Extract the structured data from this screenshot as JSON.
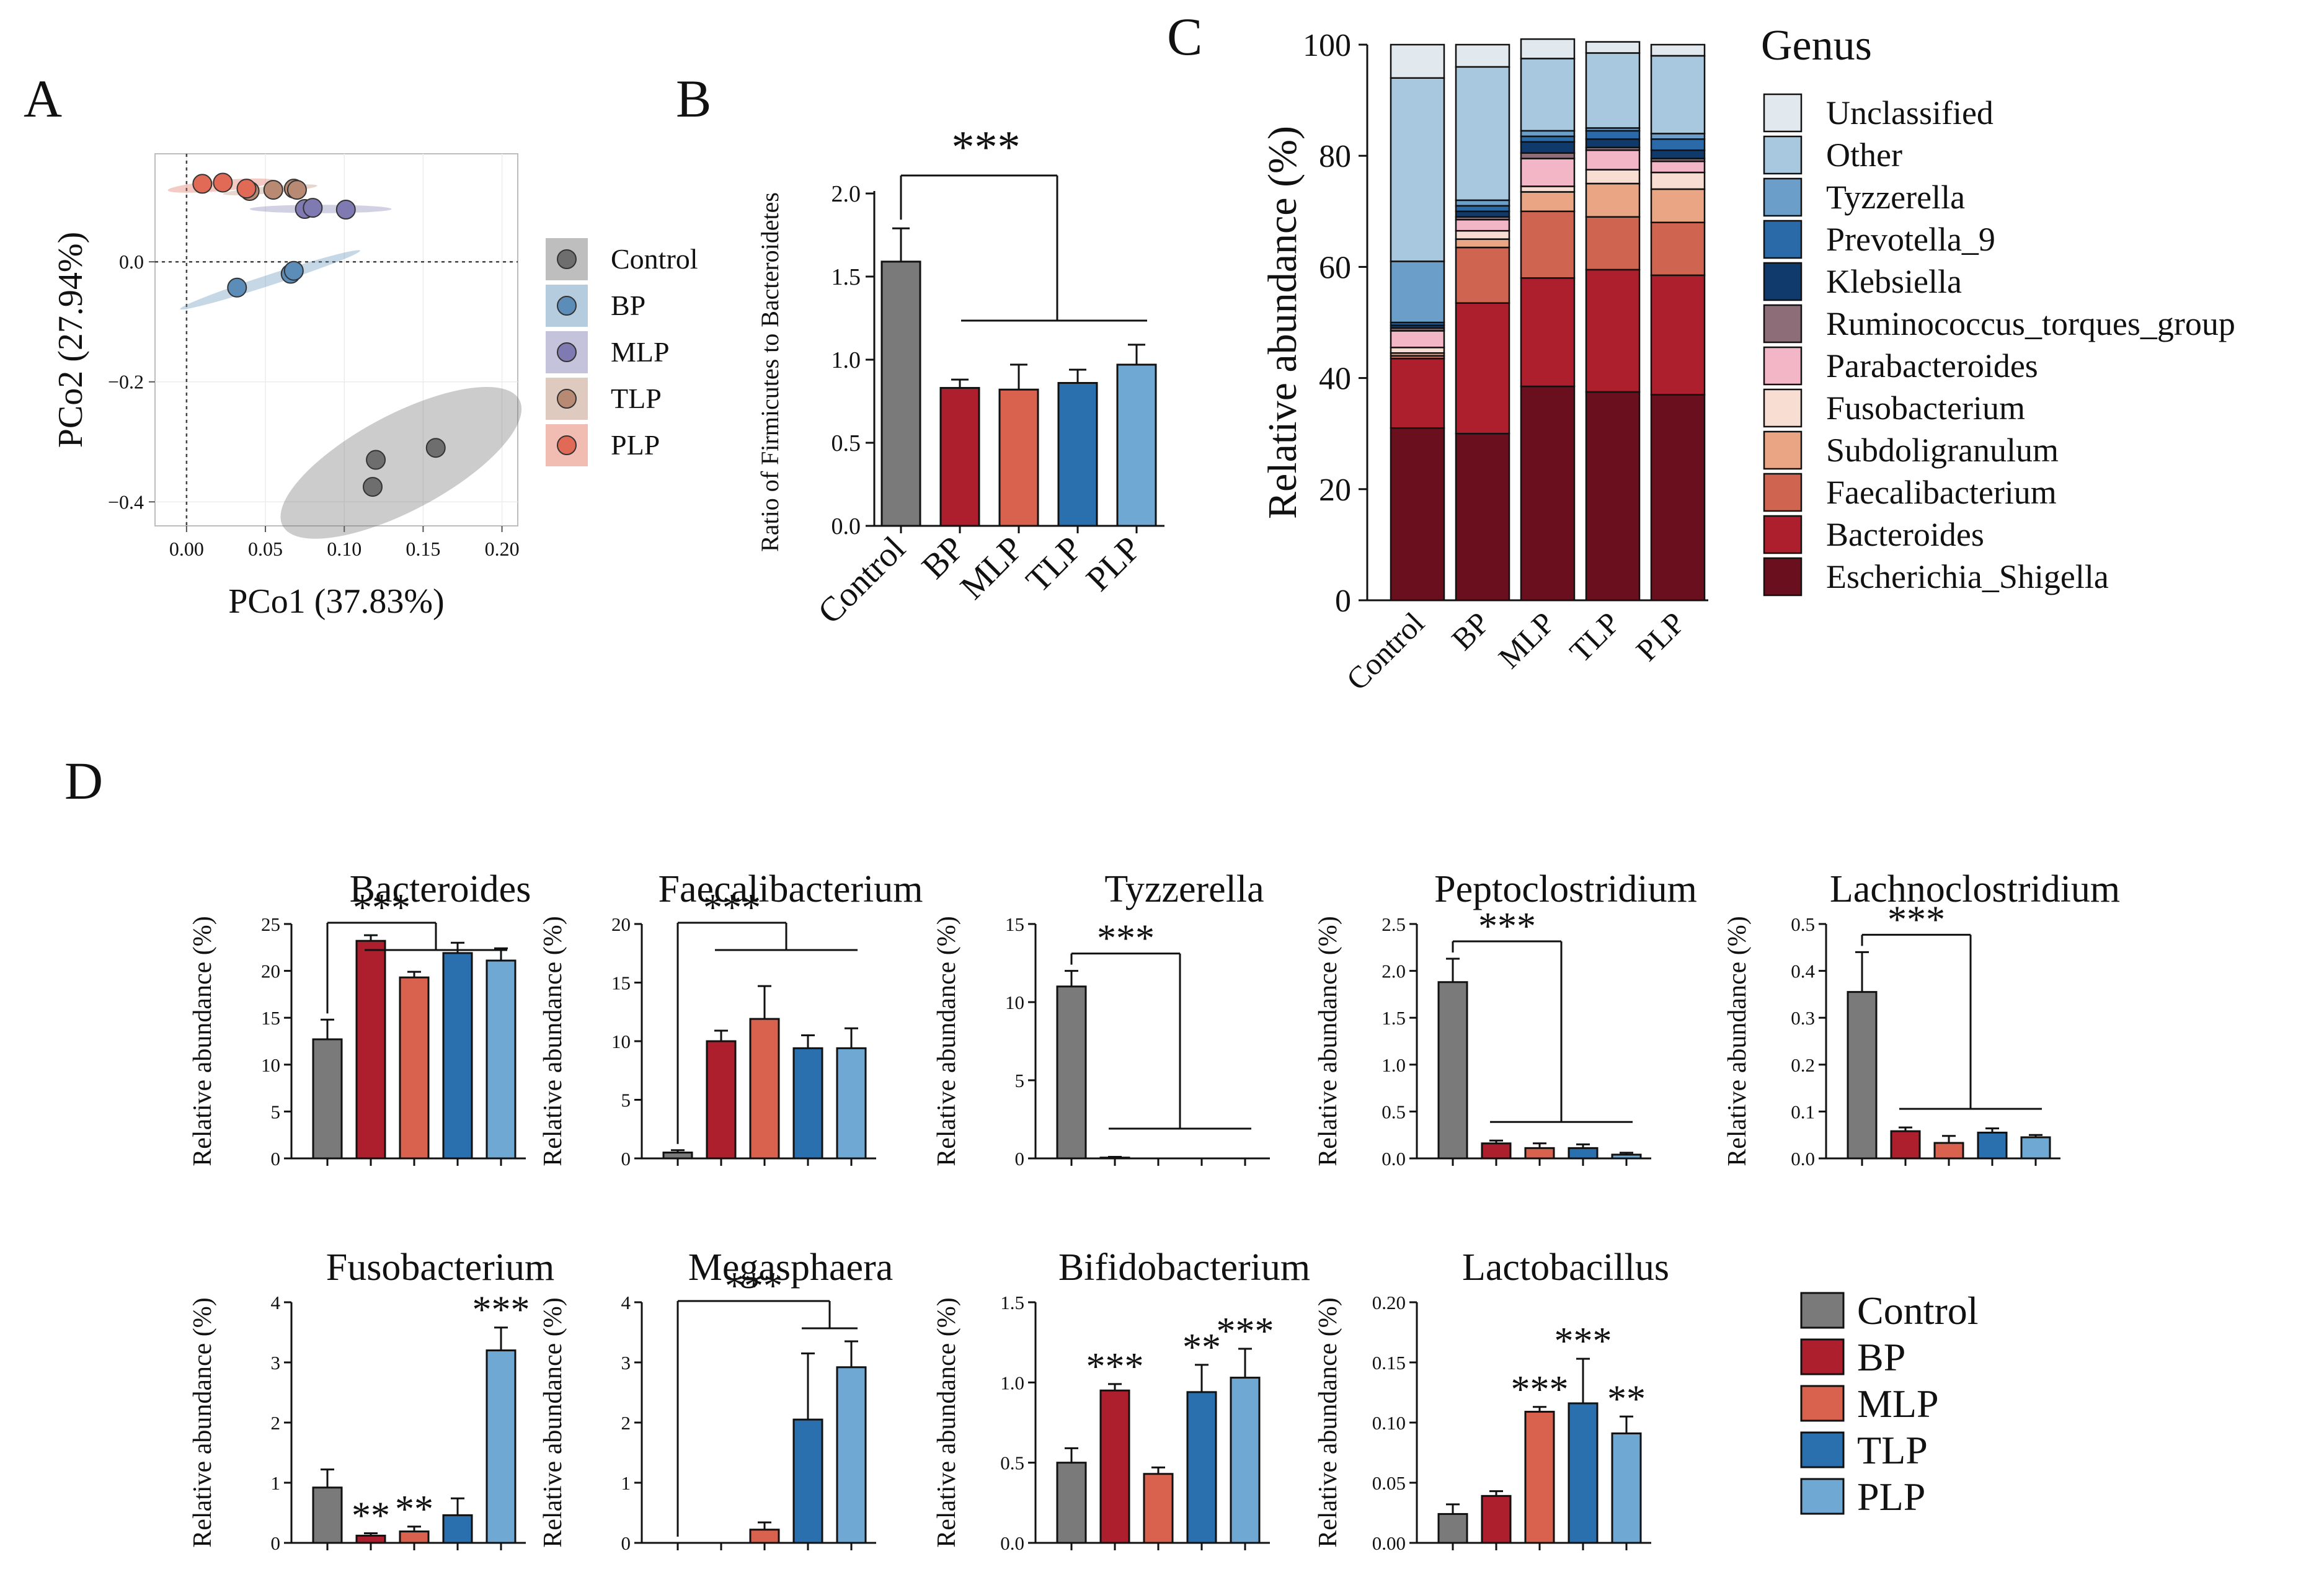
{
  "groups": [
    "Control",
    "BP",
    "MLP",
    "TLP",
    "PLP"
  ],
  "colors": {
    "Control": "#7a7a7a",
    "BP": "#ad1f2d",
    "MLP": "#d8624e",
    "TLP": "#2a70ae",
    "PLP": "#6ea8d3"
  },
  "pcoa_colors": {
    "Control": "#6e6e6e",
    "BP": "#5b8db8",
    "MLP": "#7f7bb2",
    "TLP": "#b88a74",
    "PLP": "#e06a55"
  },
  "genus_colors": {
    "Unclassified": "#e1e9ee",
    "Other": "#a8c8df",
    "Tyzzerella": "#6b9ec8",
    "Prevotella_9": "#2a6aa8",
    "Klebsiella": "#0f3a6b",
    "Ruminococcus_torques_group": "#8c6d78",
    "Parabacteroides": "#f3b6c6",
    "Fusobacterium": "#f8ded2",
    "Subdoligranulum": "#eaa585",
    "Faecalibacterium": "#cf6550",
    "Bacteroides": "#ad1f2d",
    "Escherichia_Shigella": "#6a0f1e"
  },
  "panel_letters": {
    "A": "A",
    "B": "B",
    "C": "C",
    "D": "D"
  },
  "chart_data": [
    {
      "id": "A",
      "type": "scatter",
      "title": "",
      "xlabel": "PCo1 (37.83%)",
      "ylabel": "PCo2 (27.94%)",
      "xlim": [
        -0.02,
        0.21
      ],
      "ylim": [
        -0.44,
        0.18
      ],
      "xticks": [
        0.0,
        0.05,
        0.1,
        0.15,
        0.2
      ],
      "xtick_labels": [
        "0.00",
        "0.05",
        "0.10",
        "0.15",
        "0.20"
      ],
      "yticks": [
        0.0,
        -0.2,
        -0.4
      ],
      "ytick_labels": [
        "0.0",
        "−0.2",
        "−0.4"
      ],
      "legend": [
        "Control",
        "BP",
        "MLP",
        "TLP",
        "PLP"
      ],
      "legend_position": "right",
      "series": [
        {
          "name": "Control",
          "points": [
            [
              0.12,
              -0.33
            ],
            [
              0.158,
              -0.31
            ],
            [
              0.118,
              -0.375
            ]
          ],
          "ellipse": {
            "cx": 0.136,
            "cy": -0.335,
            "rx": 0.085,
            "ry": 0.08,
            "angle": -28
          }
        },
        {
          "name": "BP",
          "points": [
            [
              0.032,
              -0.043
            ],
            [
              0.066,
              -0.02
            ],
            [
              0.068,
              -0.015
            ]
          ],
          "ellipse": {
            "cx": 0.053,
            "cy": -0.03,
            "rx": 0.06,
            "ry": 0.009,
            "angle": -18
          }
        },
        {
          "name": "MLP",
          "points": [
            [
              0.075,
              0.088
            ],
            [
              0.08,
              0.09
            ],
            [
              0.101,
              0.087
            ]
          ],
          "ellipse": {
            "cx": 0.085,
            "cy": 0.088,
            "rx": 0.045,
            "ry": 0.007,
            "angle": 0
          }
        },
        {
          "name": "TLP",
          "points": [
            [
              0.04,
              0.118
            ],
            [
              0.055,
              0.12
            ],
            [
              0.068,
              0.122
            ],
            [
              0.07,
              0.12
            ]
          ],
          "ellipse": {
            "cx": 0.053,
            "cy": 0.12,
            "rx": 0.03,
            "ry": 0.006,
            "angle": -5
          }
        },
        {
          "name": "PLP",
          "points": [
            [
              0.01,
              0.13
            ],
            [
              0.023,
              0.132
            ],
            [
              0.038,
              0.122
            ]
          ],
          "ellipse": {
            "cx": 0.022,
            "cy": 0.127,
            "rx": 0.034,
            "ry": 0.009,
            "angle": -5
          }
        }
      ]
    },
    {
      "id": "B",
      "type": "bar",
      "title": "",
      "xlabel": "",
      "ylabel": "Ratio of Firmicutes to Bacteroidetes",
      "categories": [
        "Control",
        "BP",
        "MLP",
        "TLP",
        "PLP"
      ],
      "values": [
        1.59,
        0.83,
        0.82,
        0.86,
        0.97
      ],
      "errors": [
        0.2,
        0.05,
        0.15,
        0.08,
        0.12
      ],
      "ylim": [
        0,
        2.0
      ],
      "yticks": [
        0.0,
        0.5,
        1.0,
        1.5,
        2.0
      ],
      "ytick_labels": [
        "0.0",
        "0.5",
        "1.0",
        "1.5",
        "2.0"
      ],
      "significance": [
        {
          "label": "***",
          "type": "group",
          "ref": 0,
          "targets": [
            1,
            4
          ]
        }
      ]
    },
    {
      "id": "C",
      "type": "stacked_bar",
      "title": "",
      "xlabel": "",
      "ylabel": "Relative abundance (%)",
      "categories": [
        "Control",
        "BP",
        "MLP",
        "TLP",
        "PLP"
      ],
      "ylim": [
        0,
        100
      ],
      "yticks": [
        0,
        20,
        40,
        60,
        80,
        100
      ],
      "legend_title": "Genus",
      "legend_position": "right",
      "series": [
        {
          "name": "Escherichia_Shigella",
          "values": [
            31,
            30,
            38.5,
            37.5,
            37
          ]
        },
        {
          "name": "Bacteroides",
          "values": [
            12.5,
            23.5,
            19.5,
            22,
            21.5
          ]
        },
        {
          "name": "Faecalibacterium",
          "values": [
            0.5,
            10,
            12,
            9.5,
            9.5
          ]
        },
        {
          "name": "Subdoligranulum",
          "values": [
            0.5,
            1.5,
            3.5,
            6,
            6
          ]
        },
        {
          "name": "Fusobacterium",
          "values": [
            1,
            1.5,
            1,
            2.5,
            3
          ]
        },
        {
          "name": "Parabacteroides",
          "values": [
            3,
            2,
            5,
            3.5,
            2
          ]
        },
        {
          "name": "Ruminococcus_torques_group",
          "values": [
            0.5,
            0.5,
            1,
            0.5,
            0.5
          ]
        },
        {
          "name": "Klebsiella",
          "values": [
            0.5,
            1,
            2,
            1.5,
            1.5
          ]
        },
        {
          "name": "Prevotella_9",
          "values": [
            0.5,
            1,
            1,
            1.5,
            2
          ]
        },
        {
          "name": "Tyzzerella",
          "values": [
            11,
            1,
            1,
            0.5,
            1
          ]
        },
        {
          "name": "Other",
          "values": [
            33,
            24,
            13,
            13.5,
            14
          ]
        },
        {
          "name": "Unclassified",
          "values": [
            6,
            4,
            3.5,
            2,
            2
          ]
        }
      ]
    },
    {
      "id": "D1",
      "type": "bar",
      "title": "Bacteroides",
      "ylabel": "Relative abundance (%)",
      "categories": [
        "Control",
        "BP",
        "MLP",
        "TLP",
        "PLP"
      ],
      "values": [
        12.7,
        23.2,
        19.3,
        21.9,
        21.1
      ],
      "errors": [
        2.1,
        0.6,
        0.6,
        1.1,
        1.3
      ],
      "ylim": [
        0,
        25
      ],
      "yticks": [
        0,
        5,
        10,
        15,
        20,
        25
      ],
      "ytick_labels": [
        "0",
        "5",
        "10",
        "15",
        "20",
        "25"
      ],
      "significance": [
        {
          "label": "***",
          "type": "group",
          "ref": 0,
          "targets": [
            1,
            4
          ],
          "mode": "top"
        }
      ]
    },
    {
      "id": "D2",
      "type": "bar",
      "title": "Faecalibacterium",
      "ylabel": "Relative abundance (%)",
      "categories": [
        "Control",
        "BP",
        "MLP",
        "TLP",
        "PLP"
      ],
      "values": [
        0.5,
        10.0,
        11.9,
        9.4,
        9.4
      ],
      "errors": [
        0.2,
        0.9,
        2.8,
        1.1,
        1.7
      ],
      "ylim": [
        0,
        20
      ],
      "yticks": [
        0,
        5,
        10,
        15,
        20
      ],
      "ytick_labels": [
        "0",
        "5",
        "10",
        "15",
        "20"
      ],
      "significance": [
        {
          "label": "***",
          "type": "group",
          "ref": 0,
          "targets": [
            1,
            4
          ],
          "mode": "top"
        }
      ]
    },
    {
      "id": "D3",
      "type": "bar",
      "title": "Tyzzerella",
      "ylabel": "Relative abundance (%)",
      "categories": [
        "Control",
        "BP",
        "MLP",
        "TLP",
        "PLP"
      ],
      "values": [
        11.0,
        0.05,
        0.0,
        0.0,
        0.0
      ],
      "errors": [
        1.0,
        0.05,
        0,
        0,
        0
      ],
      "ylim": [
        0,
        15
      ],
      "yticks": [
        0,
        5,
        10,
        15
      ],
      "ytick_labels": [
        "0",
        "5",
        "10",
        "15"
      ],
      "significance": [
        {
          "label": "***",
          "type": "group",
          "ref": 0,
          "targets": [
            1,
            4
          ],
          "mode": "low"
        }
      ]
    },
    {
      "id": "D4",
      "type": "bar",
      "title": "Peptoclostridium",
      "ylabel": "Relative abundance (%)",
      "categories": [
        "Control",
        "BP",
        "MLP",
        "TLP",
        "PLP"
      ],
      "values": [
        1.88,
        0.16,
        0.11,
        0.11,
        0.04
      ],
      "errors": [
        0.25,
        0.03,
        0.05,
        0.04,
        0.02
      ],
      "ylim": [
        0,
        2.5
      ],
      "yticks": [
        0,
        0.5,
        1.0,
        1.5,
        2.0,
        2.5
      ],
      "ytick_labels": [
        "0.0",
        "0.5",
        "1.0",
        "1.5",
        "2.0",
        "2.5"
      ],
      "significance": [
        {
          "label": "***",
          "type": "group",
          "ref": 0,
          "targets": [
            1,
            4
          ],
          "mode": "low"
        }
      ]
    },
    {
      "id": "D5",
      "type": "bar",
      "title": "Lachnoclostridium",
      "ylabel": "Relative abundance (%)",
      "categories": [
        "Control",
        "BP",
        "MLP",
        "TLP",
        "PLP"
      ],
      "values": [
        0.355,
        0.058,
        0.033,
        0.055,
        0.045
      ],
      "errors": [
        0.085,
        0.008,
        0.015,
        0.009,
        0.005
      ],
      "ylim": [
        0,
        0.5
      ],
      "yticks": [
        0,
        0.1,
        0.2,
        0.3,
        0.4,
        0.5
      ],
      "ytick_labels": [
        "0.0",
        "0.1",
        "0.2",
        "0.3",
        "0.4",
        "0.5"
      ],
      "significance": [
        {
          "label": "***",
          "type": "group",
          "ref": 0,
          "targets": [
            1,
            4
          ],
          "mode": "low"
        }
      ]
    },
    {
      "id": "D6",
      "type": "bar",
      "title": "Fusobacterium",
      "ylabel": "Relative abundance (%)",
      "categories": [
        "Control",
        "BP",
        "MLP",
        "TLP",
        "PLP"
      ],
      "values": [
        0.92,
        0.12,
        0.19,
        0.46,
        3.2
      ],
      "errors": [
        0.3,
        0.04,
        0.08,
        0.28,
        0.38
      ],
      "ylim": [
        0,
        4
      ],
      "yticks": [
        0,
        1,
        2,
        3,
        4
      ],
      "ytick_labels": [
        "0",
        "1",
        "2",
        "3",
        "4"
      ],
      "significance": [
        {
          "label": "**",
          "type": "single",
          "index": 1
        },
        {
          "label": "**",
          "type": "single",
          "index": 2
        },
        {
          "label": "***",
          "type": "single",
          "index": 4
        }
      ]
    },
    {
      "id": "D7",
      "type": "bar",
      "title": "Megasphaera",
      "ylabel": "Relative abundance (%)",
      "categories": [
        "Control",
        "BP",
        "MLP",
        "TLP",
        "PLP"
      ],
      "values": [
        0.0,
        0.0,
        0.22,
        2.05,
        2.92
      ],
      "errors": [
        0,
        0,
        0.12,
        1.1,
        0.43
      ],
      "ylim": [
        0,
        4
      ],
      "yticks": [
        0,
        1,
        2,
        3,
        4
      ],
      "ytick_labels": [
        "0",
        "1",
        "2",
        "3",
        "4"
      ],
      "significance": [
        {
          "label": "***",
          "type": "group",
          "ref": 0,
          "targets": [
            3,
            4
          ],
          "mode": "top"
        }
      ]
    },
    {
      "id": "D8",
      "type": "bar",
      "title": "Bifidobacterium",
      "ylabel": "Relative abundance (%)",
      "categories": [
        "Control",
        "BP",
        "MLP",
        "TLP",
        "PLP"
      ],
      "values": [
        0.5,
        0.95,
        0.43,
        0.94,
        1.03
      ],
      "errors": [
        0.09,
        0.04,
        0.04,
        0.17,
        0.18
      ],
      "ylim": [
        0,
        1.5
      ],
      "yticks": [
        0,
        0.5,
        1.0,
        1.5
      ],
      "ytick_labels": [
        "0.0",
        "0.5",
        "1.0",
        "1.5"
      ],
      "significance": [
        {
          "label": "***",
          "type": "single",
          "index": 1
        },
        {
          "label": "**",
          "type": "single",
          "index": 3
        },
        {
          "label": "***",
          "type": "single",
          "index": 4
        }
      ]
    },
    {
      "id": "D9",
      "type": "bar",
      "title": "Lactobacillus",
      "ylabel": "Relative abundance (%)",
      "categories": [
        "Control",
        "BP",
        "MLP",
        "TLP",
        "PLP"
      ],
      "values": [
        0.024,
        0.039,
        0.109,
        0.116,
        0.091
      ],
      "errors": [
        0.008,
        0.004,
        0.004,
        0.037,
        0.014
      ],
      "ylim": [
        0,
        0.2
      ],
      "yticks": [
        0,
        0.05,
        0.1,
        0.15,
        0.2
      ],
      "ytick_labels": [
        "0.00",
        "0.05",
        "0.10",
        "0.15",
        "0.20"
      ],
      "significance": [
        {
          "label": "***",
          "type": "single",
          "index": 2
        },
        {
          "label": "***",
          "type": "single",
          "index": 3
        },
        {
          "label": "**",
          "type": "single",
          "index": 4
        }
      ]
    }
  ]
}
